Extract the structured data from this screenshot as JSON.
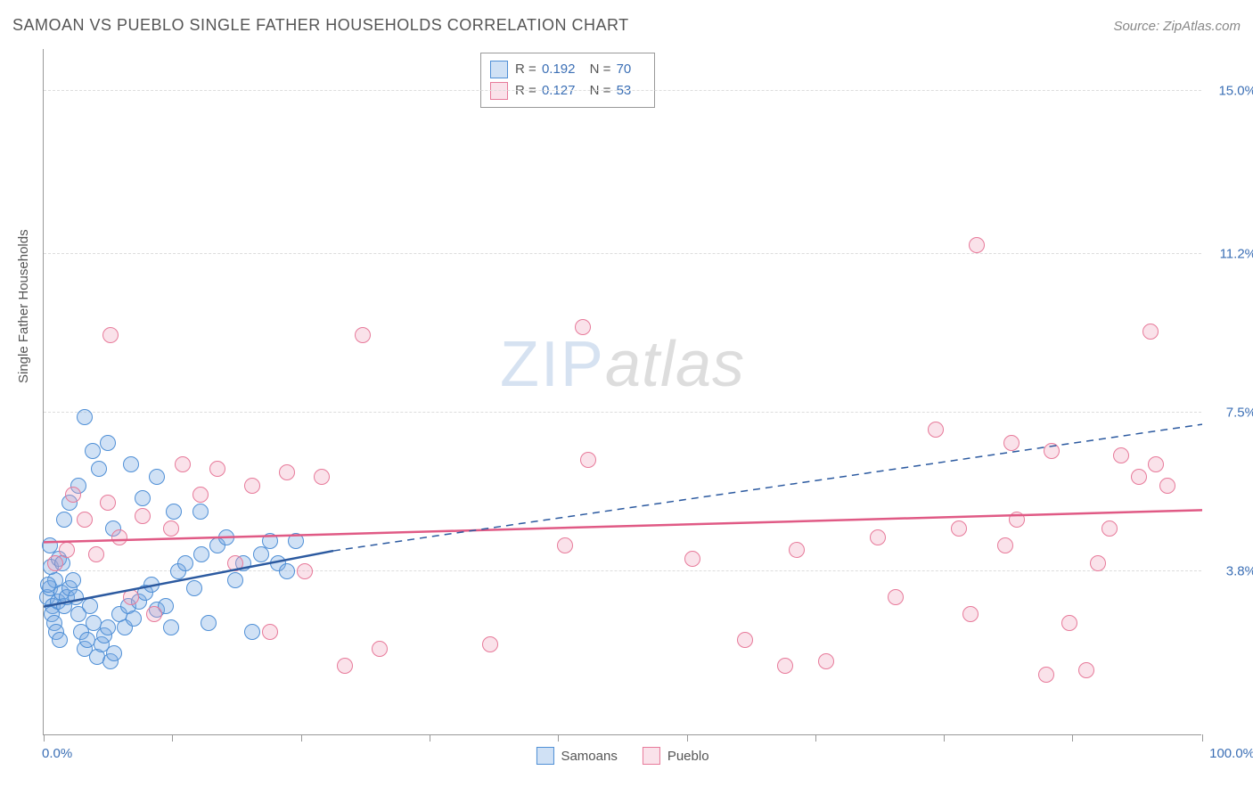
{
  "title": "SAMOAN VS PUEBLO SINGLE FATHER HOUSEHOLDS CORRELATION CHART",
  "source": "Source: ZipAtlas.com",
  "ylabel": "Single Father Households",
  "watermark": {
    "part1": "ZIP",
    "part2": "atlas"
  },
  "chart": {
    "type": "scatter",
    "xlim": [
      0,
      100
    ],
    "ylim": [
      0,
      16
    ],
    "xtick_label_left": "0.0%",
    "xtick_label_right": "100.0%",
    "ytick_positions": [
      3.8,
      7.5,
      11.2,
      15.0
    ],
    "ytick_labels": [
      "3.8%",
      "7.5%",
      "11.2%",
      "15.0%"
    ],
    "xtick_positions": [
      0,
      11.1,
      22.2,
      33.3,
      44.4,
      55.5,
      66.6,
      77.7,
      88.8,
      100
    ],
    "background_color": "#ffffff",
    "grid_color": "#dddddd",
    "axis_color": "#999999",
    "marker_radius": 9,
    "series": [
      {
        "name": "Samoans",
        "fill": "rgba(120,170,225,0.35)",
        "stroke": "#4f8fd6",
        "trend_color": "#2c5aa0",
        "R": "0.192",
        "N": "70",
        "trend": {
          "x1": 0,
          "y1": 3.0,
          "x2": 25,
          "y2": 4.3,
          "x2_dash": 100,
          "y2_dash": 7.25
        },
        "points": [
          [
            0.3,
            3.2
          ],
          [
            0.5,
            3.4
          ],
          [
            0.8,
            3.0
          ],
          [
            1.0,
            3.6
          ],
          [
            0.7,
            2.8
          ],
          [
            1.2,
            3.1
          ],
          [
            1.5,
            3.3
          ],
          [
            0.4,
            3.5
          ],
          [
            0.9,
            2.6
          ],
          [
            1.1,
            2.4
          ],
          [
            1.4,
            2.2
          ],
          [
            1.8,
            3.0
          ],
          [
            2.0,
            3.2
          ],
          [
            0.6,
            3.9
          ],
          [
            1.3,
            4.1
          ],
          [
            0.5,
            4.4
          ],
          [
            1.6,
            4.0
          ],
          [
            2.2,
            3.4
          ],
          [
            2.5,
            3.6
          ],
          [
            2.8,
            3.2
          ],
          [
            3.0,
            2.8
          ],
          [
            3.2,
            2.4
          ],
          [
            3.5,
            2.0
          ],
          [
            3.8,
            2.2
          ],
          [
            4.0,
            3.0
          ],
          [
            4.3,
            2.6
          ],
          [
            4.6,
            1.8
          ],
          [
            5.0,
            2.1
          ],
          [
            5.2,
            2.3
          ],
          [
            5.5,
            2.5
          ],
          [
            5.8,
            1.7
          ],
          [
            6.1,
            1.9
          ],
          [
            6.5,
            2.8
          ],
          [
            7.0,
            2.5
          ],
          [
            7.3,
            3.0
          ],
          [
            7.8,
            2.7
          ],
          [
            8.2,
            3.1
          ],
          [
            8.8,
            3.3
          ],
          [
            9.3,
            3.5
          ],
          [
            9.8,
            2.9
          ],
          [
            10.5,
            3.0
          ],
          [
            11.0,
            2.5
          ],
          [
            11.6,
            3.8
          ],
          [
            12.2,
            4.0
          ],
          [
            13.0,
            3.4
          ],
          [
            13.6,
            4.2
          ],
          [
            14.2,
            2.6
          ],
          [
            15.0,
            4.4
          ],
          [
            15.8,
            4.6
          ],
          [
            16.5,
            3.6
          ],
          [
            17.2,
            4.0
          ],
          [
            18.0,
            2.4
          ],
          [
            18.8,
            4.2
          ],
          [
            19.5,
            4.5
          ],
          [
            20.2,
            4.0
          ],
          [
            21.0,
            3.8
          ],
          [
            21.8,
            4.5
          ],
          [
            3.0,
            5.8
          ],
          [
            4.8,
            6.2
          ],
          [
            5.5,
            6.8
          ],
          [
            7.5,
            6.3
          ],
          [
            9.8,
            6.0
          ],
          [
            11.2,
            5.2
          ],
          [
            2.2,
            5.4
          ],
          [
            1.8,
            5.0
          ],
          [
            3.5,
            7.4
          ],
          [
            4.2,
            6.6
          ],
          [
            8.5,
            5.5
          ],
          [
            6.0,
            4.8
          ],
          [
            13.5,
            5.2
          ]
        ]
      },
      {
        "name": "Pueblo",
        "fill": "rgba(240,160,185,0.30)",
        "stroke": "#e77a9a",
        "trend_color": "#e05a85",
        "R": "0.127",
        "N": "53",
        "trend": {
          "x1": 0,
          "y1": 4.5,
          "x2": 100,
          "y2": 5.25
        },
        "points": [
          [
            1.0,
            4.0
          ],
          [
            2.0,
            4.3
          ],
          [
            2.5,
            5.6
          ],
          [
            3.5,
            5.0
          ],
          [
            4.5,
            4.2
          ],
          [
            5.5,
            5.4
          ],
          [
            6.5,
            4.6
          ],
          [
            7.5,
            3.2
          ],
          [
            8.5,
            5.1
          ],
          [
            9.5,
            2.8
          ],
          [
            11.0,
            4.8
          ],
          [
            12.0,
            6.3
          ],
          [
            13.5,
            5.6
          ],
          [
            15.0,
            6.2
          ],
          [
            16.5,
            4.0
          ],
          [
            18.0,
            5.8
          ],
          [
            19.5,
            2.4
          ],
          [
            21.0,
            6.1
          ],
          [
            22.5,
            3.8
          ],
          [
            24.0,
            6.0
          ],
          [
            26.0,
            1.6
          ],
          [
            27.5,
            9.3
          ],
          [
            29.0,
            2.0
          ],
          [
            38.5,
            2.1
          ],
          [
            45.0,
            4.4
          ],
          [
            47.0,
            6.4
          ],
          [
            46.5,
            9.5
          ],
          [
            56.0,
            4.1
          ],
          [
            60.5,
            2.2
          ],
          [
            64.0,
            1.6
          ],
          [
            65.0,
            4.3
          ],
          [
            67.5,
            1.7
          ],
          [
            72.0,
            4.6
          ],
          [
            73.5,
            3.2
          ],
          [
            77.0,
            7.1
          ],
          [
            79.0,
            4.8
          ],
          [
            80.0,
            2.8
          ],
          [
            80.5,
            11.4
          ],
          [
            83.0,
            4.4
          ],
          [
            84.0,
            5.0
          ],
          [
            83.5,
            6.8
          ],
          [
            86.5,
            1.4
          ],
          [
            87.0,
            6.6
          ],
          [
            88.5,
            2.6
          ],
          [
            90.0,
            1.5
          ],
          [
            91.0,
            4.0
          ],
          [
            92.0,
            4.8
          ],
          [
            93.0,
            6.5
          ],
          [
            94.5,
            6.0
          ],
          [
            95.5,
            9.4
          ],
          [
            96.0,
            6.3
          ],
          [
            97.0,
            5.8
          ],
          [
            5.8,
            9.3
          ]
        ]
      }
    ]
  },
  "legend_series": [
    "Samoans",
    "Pueblo"
  ]
}
